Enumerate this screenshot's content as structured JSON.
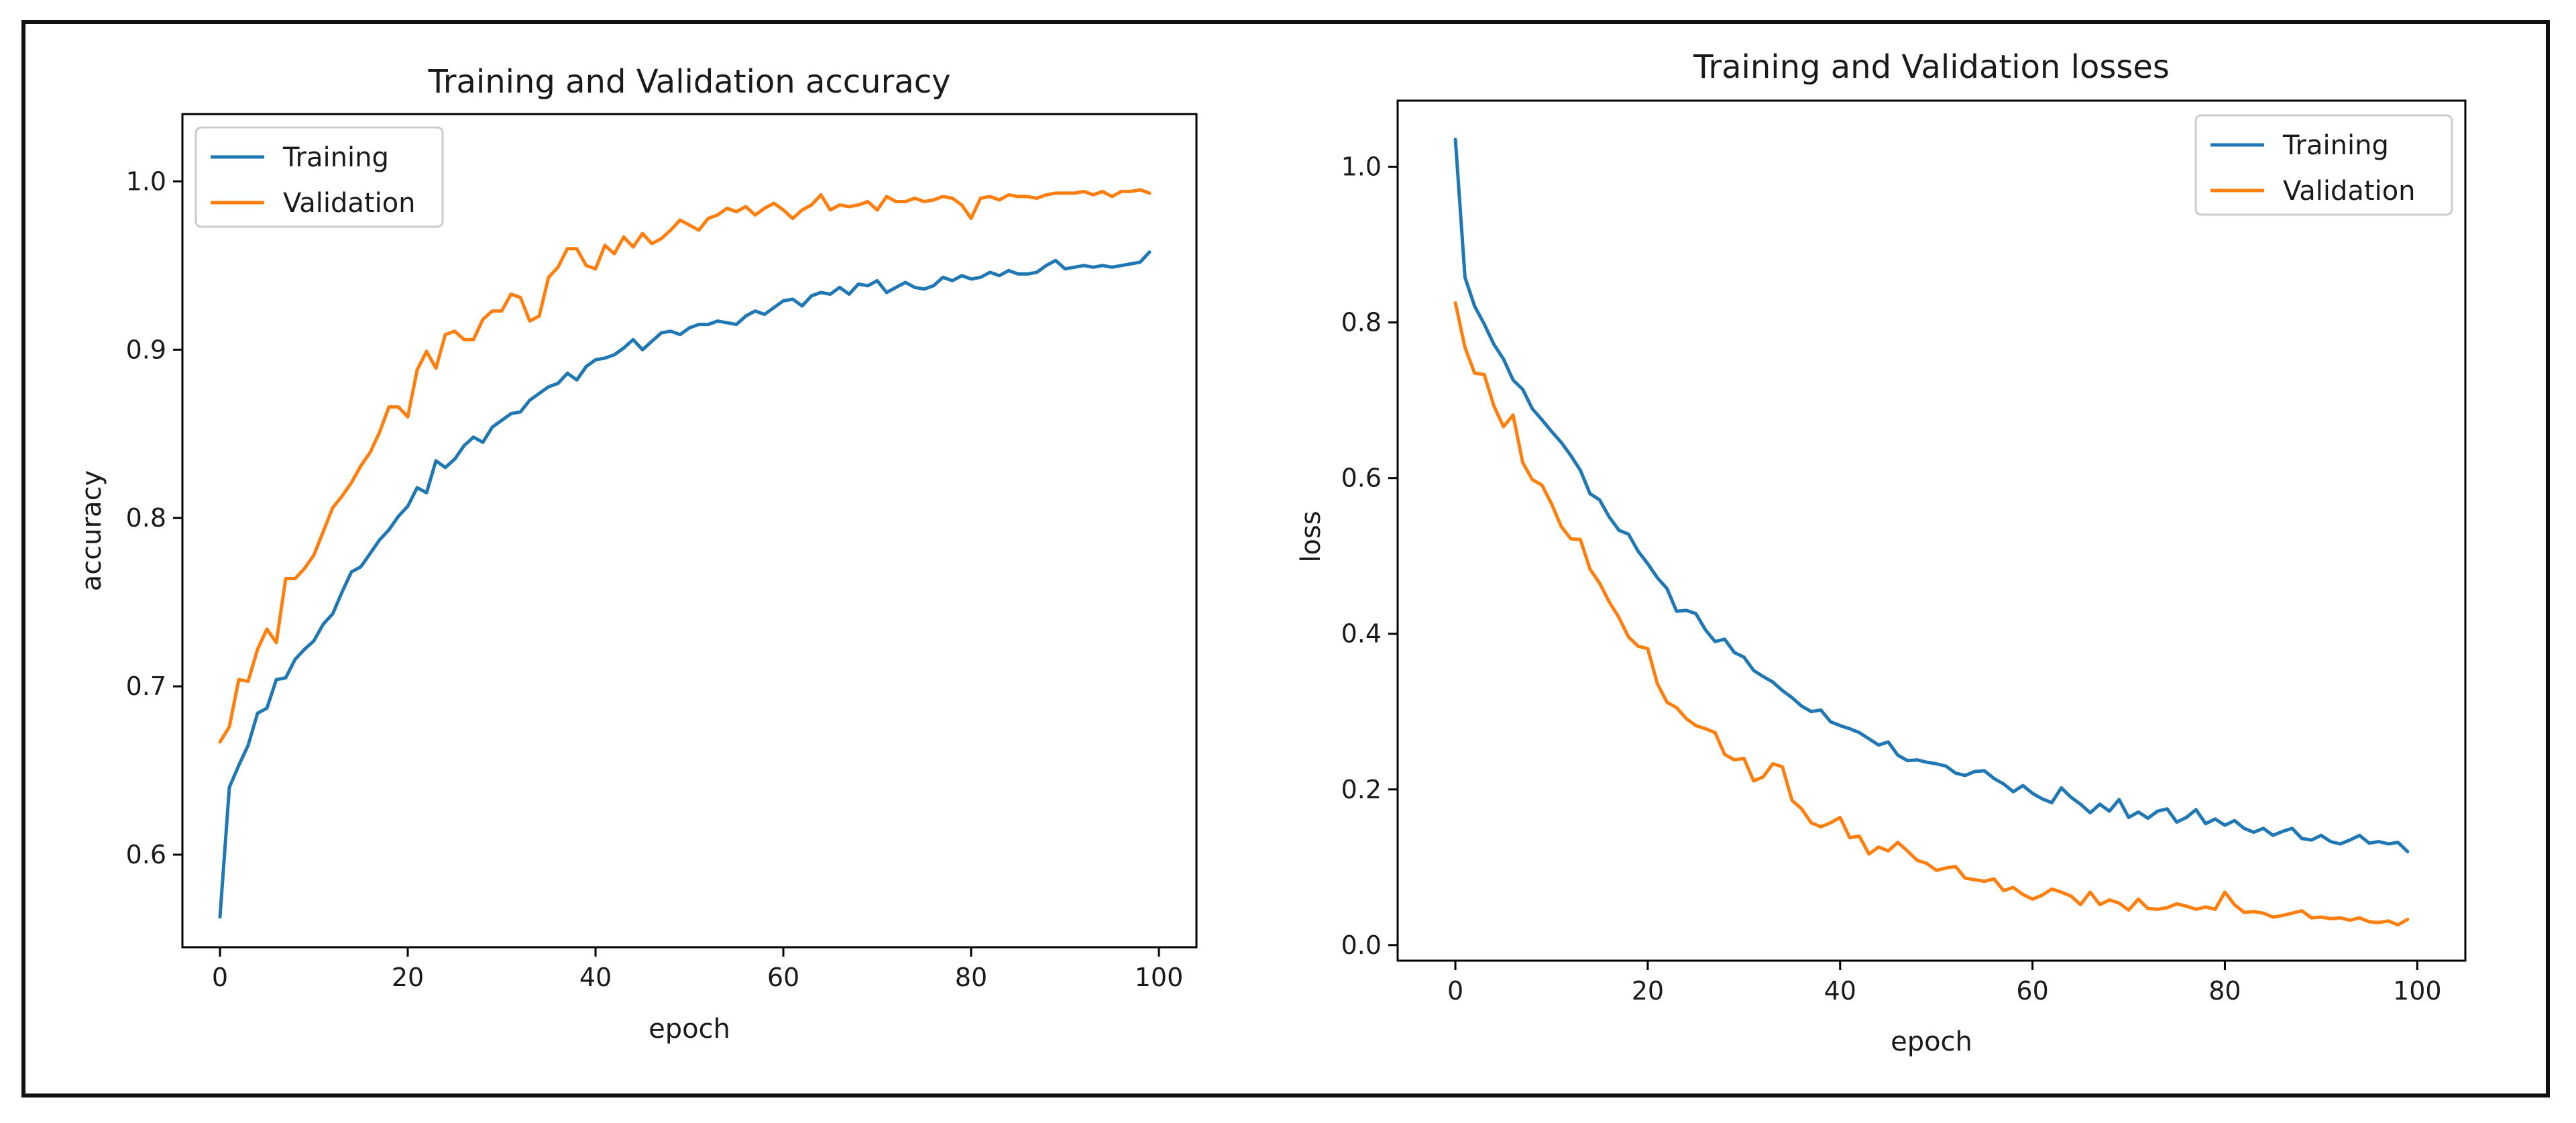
{
  "chart_data": [
    {
      "type": "line",
      "title": "Training and Validation accuracy",
      "xlabel": "epoch",
      "ylabel": "accuracy",
      "xlim": [
        -4,
        104
      ],
      "ylim": [
        0.545,
        1.04
      ],
      "xticks": [
        0,
        20,
        40,
        60,
        80,
        100
      ],
      "xtick_labels": [
        "0",
        "20",
        "40",
        "60",
        "80",
        "100"
      ],
      "yticks": [
        0.6,
        0.7,
        0.8,
        0.9,
        1.0
      ],
      "ytick_labels": [
        "0.6",
        "0.7",
        "0.8",
        "0.9",
        "1.0"
      ],
      "legend": "upper-left",
      "series": [
        {
          "name": "Training",
          "color": "#1f77b4",
          "values": [
            0.563,
            0.64,
            0.653,
            0.665,
            0.684,
            0.687,
            0.704,
            0.705,
            0.716,
            0.722,
            0.727,
            0.737,
            0.743,
            0.756,
            0.768,
            0.771,
            0.779,
            0.787,
            0.793,
            0.801,
            0.807,
            0.818,
            0.815,
            0.834,
            0.83,
            0.835,
            0.843,
            0.848,
            0.845,
            0.854,
            0.858,
            0.862,
            0.863,
            0.87,
            0.874,
            0.878,
            0.88,
            0.886,
            0.882,
            0.89,
            0.894,
            0.895,
            0.897,
            0.901,
            0.906,
            0.9,
            0.905,
            0.91,
            0.911,
            0.909,
            0.913,
            0.915,
            0.915,
            0.917,
            0.916,
            0.915,
            0.92,
            0.923,
            0.921,
            0.925,
            0.929,
            0.93,
            0.926,
            0.932,
            0.934,
            0.933,
            0.937,
            0.933,
            0.939,
            0.938,
            0.941,
            0.934,
            0.937,
            0.94,
            0.937,
            0.936,
            0.938,
            0.943,
            0.941,
            0.944,
            0.942,
            0.943,
            0.946,
            0.944,
            0.947,
            0.945,
            0.945,
            0.946,
            0.95,
            0.953,
            0.948,
            0.949,
            0.95,
            0.949,
            0.95,
            0.949,
            0.95,
            0.951,
            0.952,
            0.958
          ]
        },
        {
          "name": "Validation",
          "color": "#ff7f0e",
          "values": [
            0.667,
            0.676,
            0.704,
            0.703,
            0.722,
            0.734,
            0.726,
            0.764,
            0.764,
            0.77,
            0.778,
            0.792,
            0.806,
            0.813,
            0.821,
            0.831,
            0.839,
            0.851,
            0.866,
            0.866,
            0.86,
            0.888,
            0.899,
            0.889,
            0.909,
            0.911,
            0.906,
            0.906,
            0.918,
            0.923,
            0.923,
            0.933,
            0.931,
            0.917,
            0.92,
            0.943,
            0.949,
            0.96,
            0.96,
            0.95,
            0.948,
            0.962,
            0.957,
            0.967,
            0.961,
            0.969,
            0.963,
            0.966,
            0.971,
            0.977,
            0.974,
            0.971,
            0.978,
            0.98,
            0.984,
            0.982,
            0.985,
            0.98,
            0.984,
            0.987,
            0.983,
            0.978,
            0.983,
            0.986,
            0.992,
            0.983,
            0.986,
            0.985,
            0.986,
            0.988,
            0.983,
            0.991,
            0.988,
            0.988,
            0.99,
            0.988,
            0.989,
            0.991,
            0.99,
            0.986,
            0.978,
            0.99,
            0.991,
            0.989,
            0.992,
            0.991,
            0.991,
            0.99,
            0.992,
            0.993,
            0.993,
            0.993,
            0.994,
            0.992,
            0.994,
            0.991,
            0.994,
            0.994,
            0.995,
            0.993
          ]
        }
      ]
    },
    {
      "type": "line",
      "title": "Training and Validation losses",
      "xlabel": "epoch",
      "ylabel": "loss",
      "xlim": [
        -6,
        105
      ],
      "ylim": [
        -0.02,
        1.085
      ],
      "xticks": [
        0,
        20,
        40,
        60,
        80,
        100
      ],
      "xtick_labels": [
        "0",
        "20",
        "40",
        "60",
        "80",
        "100"
      ],
      "yticks": [
        0.0,
        0.2,
        0.4,
        0.6,
        0.8,
        1.0
      ],
      "ytick_labels": [
        "0.0",
        "0.2",
        "0.4",
        "0.6",
        "0.8",
        "1.0"
      ],
      "legend": "upper-right",
      "series": [
        {
          "name": "Training",
          "color": "#1f77b4",
          "values": [
            1.035,
            0.858,
            0.821,
            0.798,
            0.772,
            0.753,
            0.726,
            0.714,
            0.689,
            0.675,
            0.66,
            0.646,
            0.629,
            0.61,
            0.58,
            0.572,
            0.55,
            0.533,
            0.528,
            0.506,
            0.49,
            0.472,
            0.458,
            0.429,
            0.43,
            0.426,
            0.405,
            0.39,
            0.393,
            0.376,
            0.37,
            0.353,
            0.345,
            0.338,
            0.327,
            0.318,
            0.307,
            0.3,
            0.302,
            0.287,
            0.282,
            0.278,
            0.273,
            0.265,
            0.257,
            0.261,
            0.244,
            0.237,
            0.238,
            0.235,
            0.233,
            0.23,
            0.221,
            0.218,
            0.223,
            0.224,
            0.214,
            0.207,
            0.197,
            0.205,
            0.195,
            0.188,
            0.183,
            0.202,
            0.19,
            0.181,
            0.17,
            0.181,
            0.172,
            0.187,
            0.164,
            0.171,
            0.163,
            0.172,
            0.175,
            0.158,
            0.164,
            0.174,
            0.156,
            0.162,
            0.154,
            0.16,
            0.15,
            0.145,
            0.15,
            0.141,
            0.146,
            0.15,
            0.137,
            0.135,
            0.141,
            0.133,
            0.13,
            0.135,
            0.141,
            0.131,
            0.133,
            0.13,
            0.132,
            0.12
          ]
        },
        {
          "name": "Validation",
          "color": "#ff7f0e",
          "values": [
            0.825,
            0.768,
            0.735,
            0.733,
            0.693,
            0.666,
            0.681,
            0.62,
            0.598,
            0.591,
            0.567,
            0.538,
            0.522,
            0.521,
            0.483,
            0.465,
            0.441,
            0.421,
            0.396,
            0.384,
            0.381,
            0.336,
            0.312,
            0.305,
            0.291,
            0.282,
            0.278,
            0.273,
            0.245,
            0.238,
            0.24,
            0.211,
            0.216,
            0.233,
            0.229,
            0.186,
            0.175,
            0.157,
            0.152,
            0.157,
            0.164,
            0.138,
            0.14,
            0.117,
            0.126,
            0.121,
            0.132,
            0.121,
            0.109,
            0.105,
            0.096,
            0.099,
            0.101,
            0.086,
            0.084,
            0.082,
            0.085,
            0.07,
            0.074,
            0.065,
            0.059,
            0.064,
            0.072,
            0.068,
            0.063,
            0.052,
            0.068,
            0.052,
            0.058,
            0.054,
            0.045,
            0.059,
            0.047,
            0.046,
            0.048,
            0.053,
            0.05,
            0.046,
            0.049,
            0.046,
            0.068,
            0.052,
            0.042,
            0.043,
            0.041,
            0.036,
            0.038,
            0.041,
            0.044,
            0.035,
            0.036,
            0.034,
            0.035,
            0.032,
            0.035,
            0.03,
            0.029,
            0.031,
            0.026,
            0.033
          ]
        }
      ]
    }
  ]
}
